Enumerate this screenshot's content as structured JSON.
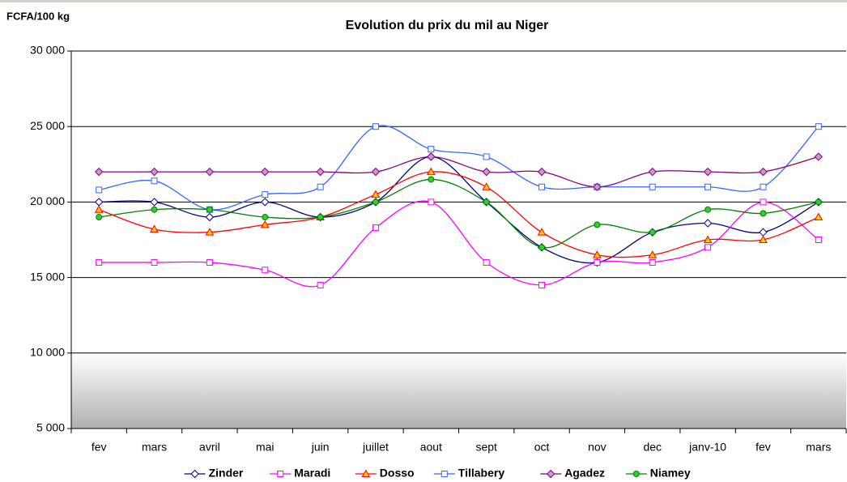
{
  "chart_data": {
    "type": "line",
    "title": "Evolution du prix du mil au Niger",
    "y_label": "FCFA/100 kg",
    "categories": [
      "fev",
      "mars",
      "avril",
      "mai",
      "juin",
      "juillet",
      "aout",
      "sept",
      "oct",
      "nov",
      "dec",
      "janv-10",
      "fev",
      "mars"
    ],
    "ylim": [
      5000,
      30000
    ],
    "yticks": [
      {
        "value": 5000,
        "label": "5 000"
      },
      {
        "value": 10000,
        "label": "10 000"
      },
      {
        "value": 15000,
        "label": "15 000"
      },
      {
        "value": 20000,
        "label": "20 000"
      },
      {
        "value": 25000,
        "label": "25 000"
      },
      {
        "value": 30000,
        "label": "30 000"
      }
    ],
    "grid": true,
    "smooth": true,
    "legend": "bottom",
    "series": [
      {
        "name": "Zinder",
        "color": "#000080",
        "marker": "diamond",
        "marker_fill": "#ffffff",
        "values": [
          20000,
          20000,
          19000,
          20000,
          19000,
          20000,
          23000,
          20000,
          17000,
          16000,
          18000,
          18600,
          18000,
          20000
        ]
      },
      {
        "name": "Maradi",
        "color": "#ff00ff",
        "marker": "square",
        "marker_fill": "#ffffff",
        "values": [
          16000,
          16000,
          16000,
          15500,
          14500,
          18300,
          20000,
          16000,
          14500,
          16000,
          16000,
          17000,
          20000,
          17500
        ]
      },
      {
        "name": "Dosso",
        "color": "#ff0000",
        "marker": "triangle",
        "marker_fill": "#ffcc00",
        "values": [
          19500,
          18200,
          18000,
          18500,
          19000,
          20500,
          22000,
          21000,
          18000,
          16500,
          16500,
          17500,
          17500,
          19000
        ]
      },
      {
        "name": "Tillabery",
        "color": "#3366ff",
        "marker": "square",
        "marker_fill": "#ffffff",
        "values": [
          20800,
          21400,
          19500,
          20500,
          21000,
          25000,
          23500,
          23000,
          21000,
          21000,
          21000,
          21000,
          21000,
          25000
        ]
      },
      {
        "name": "Agadez",
        "color": "#800080",
        "marker": "diamond",
        "marker_fill": "#cc99cc",
        "values": [
          22000,
          22000,
          22000,
          22000,
          22000,
          22000,
          23000,
          22000,
          22000,
          21000,
          22000,
          22000,
          22000,
          23000
        ]
      },
      {
        "name": "Niamey",
        "color": "#008000",
        "marker": "circle",
        "marker_fill": "#33cc33",
        "values": [
          19000,
          19500,
          19500,
          19000,
          19000,
          20000,
          21500,
          20000,
          17000,
          18500,
          18000,
          19500,
          19250,
          20000
        ]
      }
    ]
  }
}
